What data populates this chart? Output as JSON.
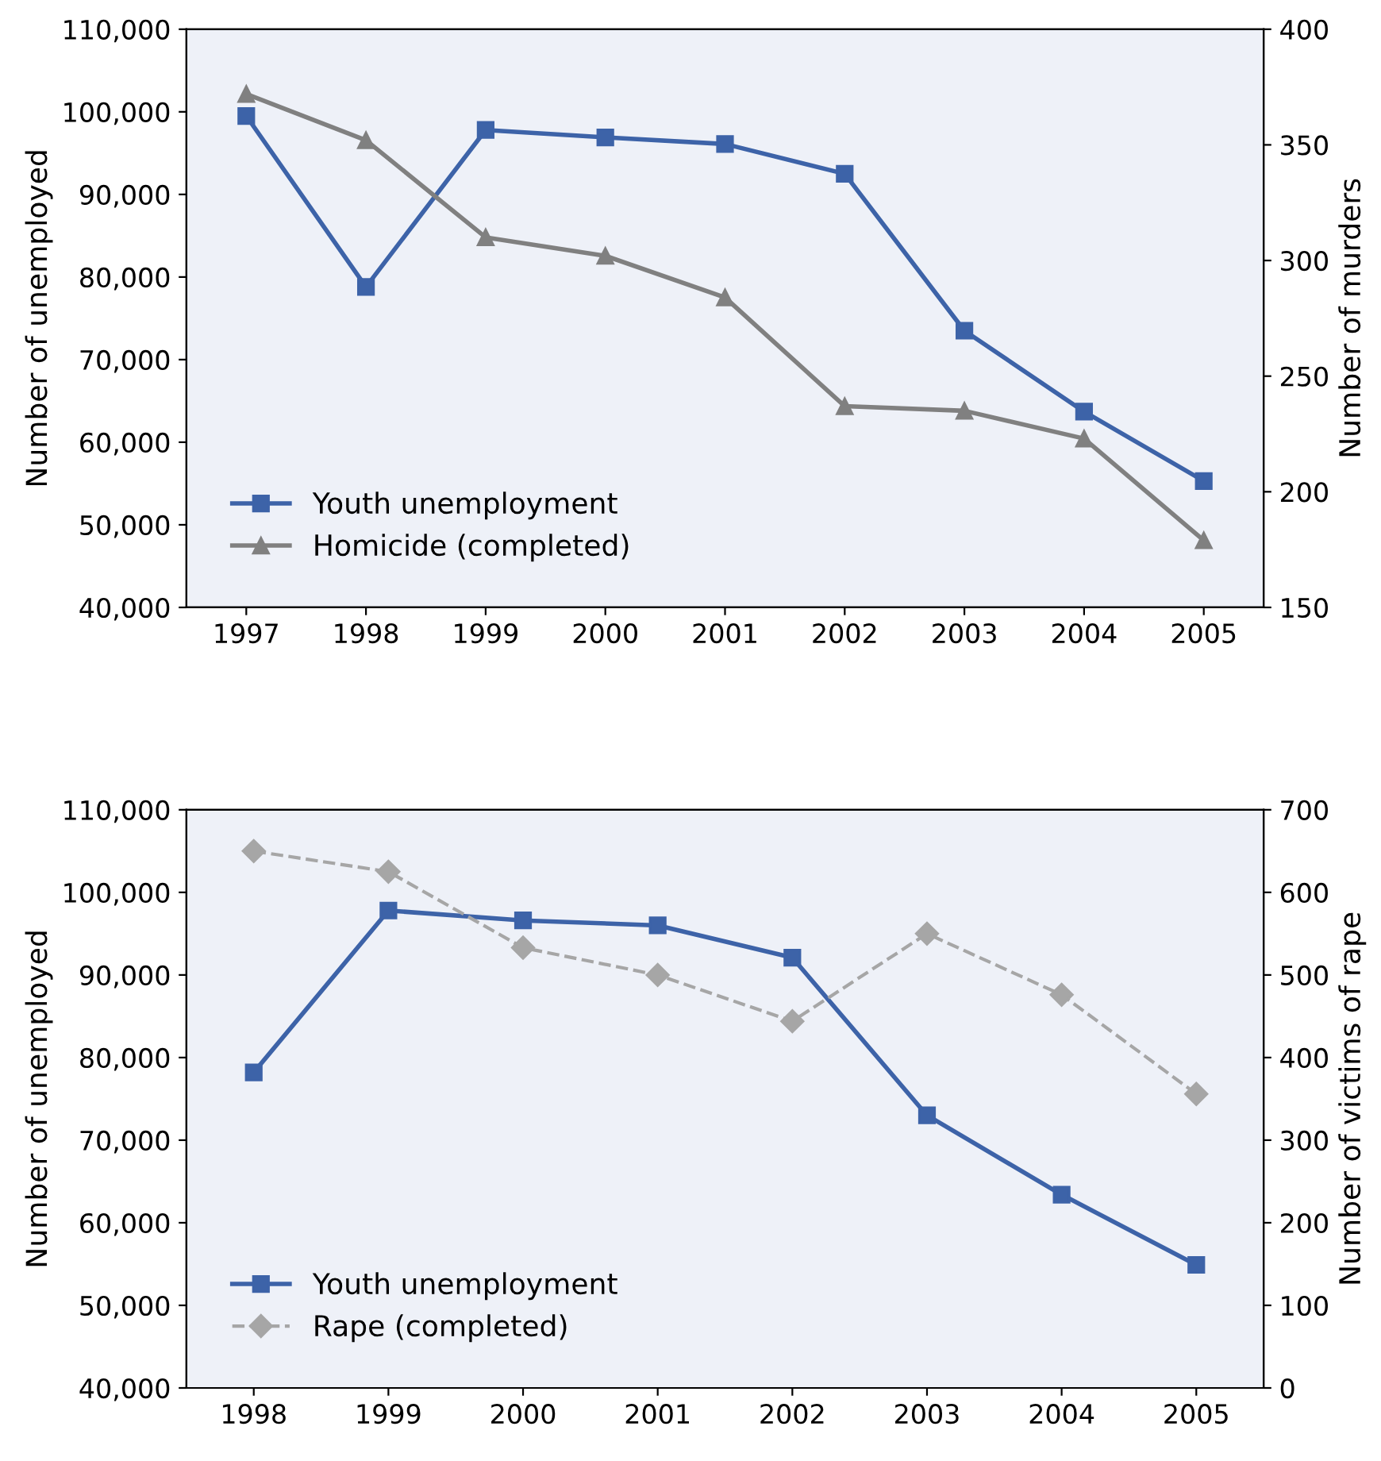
{
  "chart_data": [
    {
      "type": "line",
      "categories": [
        "1997",
        "1998",
        "1999",
        "2000",
        "2001",
        "2002",
        "2003",
        "2004",
        "2005"
      ],
      "ylabel": "Number of unemployed",
      "y2label": "Number of murders",
      "ylim": [
        40000,
        110000
      ],
      "yticks": [
        {
          "value": 40000,
          "label": "40,000"
        },
        {
          "value": 50000,
          "label": "50,000"
        },
        {
          "value": 60000,
          "label": "60,000"
        },
        {
          "value": 70000,
          "label": "70,000"
        },
        {
          "value": 80000,
          "label": "80,000"
        },
        {
          "value": 90000,
          "label": "90,000"
        },
        {
          "value": 100000,
          "label": "100,000"
        },
        {
          "value": 110000,
          "label": "110,000"
        }
      ],
      "y2lim": [
        150,
        400
      ],
      "y2ticks": [
        150,
        200,
        250,
        300,
        350,
        400
      ],
      "legend": "bottom left",
      "grid": false,
      "series": [
        {
          "name": "Youth unemployment",
          "color": "#3d63a8",
          "marker": "square",
          "line_style": "solid",
          "values": [
            99500,
            78800,
            97800,
            96900,
            96100,
            92500,
            73500,
            63700,
            55300
          ]
        },
        {
          "name": "Homicide (completed)",
          "color": "#808080",
          "marker": "triangle",
          "line_style": "solid",
          "axis": "y2",
          "values": [
            372,
            352,
            310,
            302,
            284,
            237,
            235,
            223,
            179
          ]
        }
      ]
    },
    {
      "type": "line",
      "categories": [
        "1998",
        "1999",
        "2000",
        "2001",
        "2002",
        "2003",
        "2004",
        "2005"
      ],
      "ylabel": "Number of unemployed",
      "y2label": "Number of victims of rape",
      "ylim": [
        40000,
        110000
      ],
      "yticks": [
        {
          "value": 40000,
          "label": "40,000"
        },
        {
          "value": 50000,
          "label": "50,000"
        },
        {
          "value": 60000,
          "label": "60,000"
        },
        {
          "value": 70000,
          "label": "70,000"
        },
        {
          "value": 80000,
          "label": "80,000"
        },
        {
          "value": 90000,
          "label": "90,000"
        },
        {
          "value": 100000,
          "label": "100,000"
        },
        {
          "value": 110000,
          "label": "110,000"
        }
      ],
      "y2lim": [
        0,
        700
      ],
      "y2ticks": [
        0,
        100,
        200,
        300,
        400,
        500,
        600,
        700
      ],
      "legend": "bottom left",
      "grid": false,
      "series": [
        {
          "name": "Youth unemployment",
          "color": "#3d63a8",
          "marker": "square",
          "line_style": "solid",
          "values": [
            78200,
            97800,
            96600,
            96000,
            92100,
            73000,
            63400,
            54900
          ]
        },
        {
          "name": "Rape (completed)",
          "color": "#a6a6a6",
          "marker": "diamond",
          "line_style": "dashed",
          "axis": "y2",
          "values": [
            650,
            625,
            533,
            500,
            444,
            550,
            476,
            356
          ]
        }
      ]
    }
  ]
}
